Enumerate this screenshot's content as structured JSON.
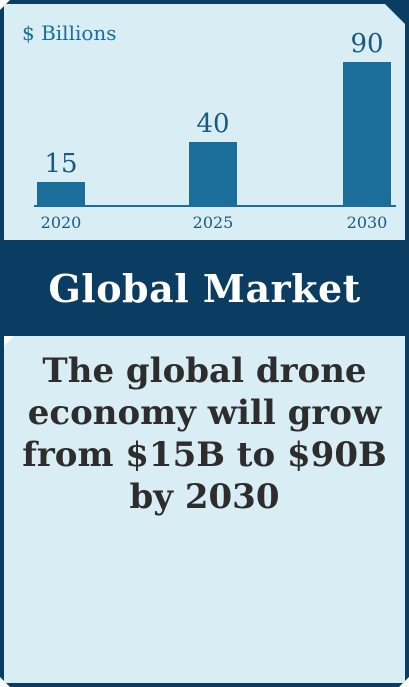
{
  "chart_data": {
    "type": "bar",
    "categories": [
      "2020",
      "2025",
      "2030"
    ],
    "values": [
      15,
      40,
      90
    ],
    "unit_label": "$ Billions",
    "data_labels": [
      "15",
      "40",
      "90"
    ],
    "ylim": [
      0,
      100
    ],
    "bar_color": "#1a6e99",
    "axis_color": "#1a6e99",
    "grid": false
  },
  "banner": {
    "title": "Global Market"
  },
  "headline": "The global drone economy will grow from $15B to $90B by 2030",
  "colors": {
    "navy": "#0b3d63",
    "panel": "#d9edf4",
    "text": "#2d2d2d"
  }
}
